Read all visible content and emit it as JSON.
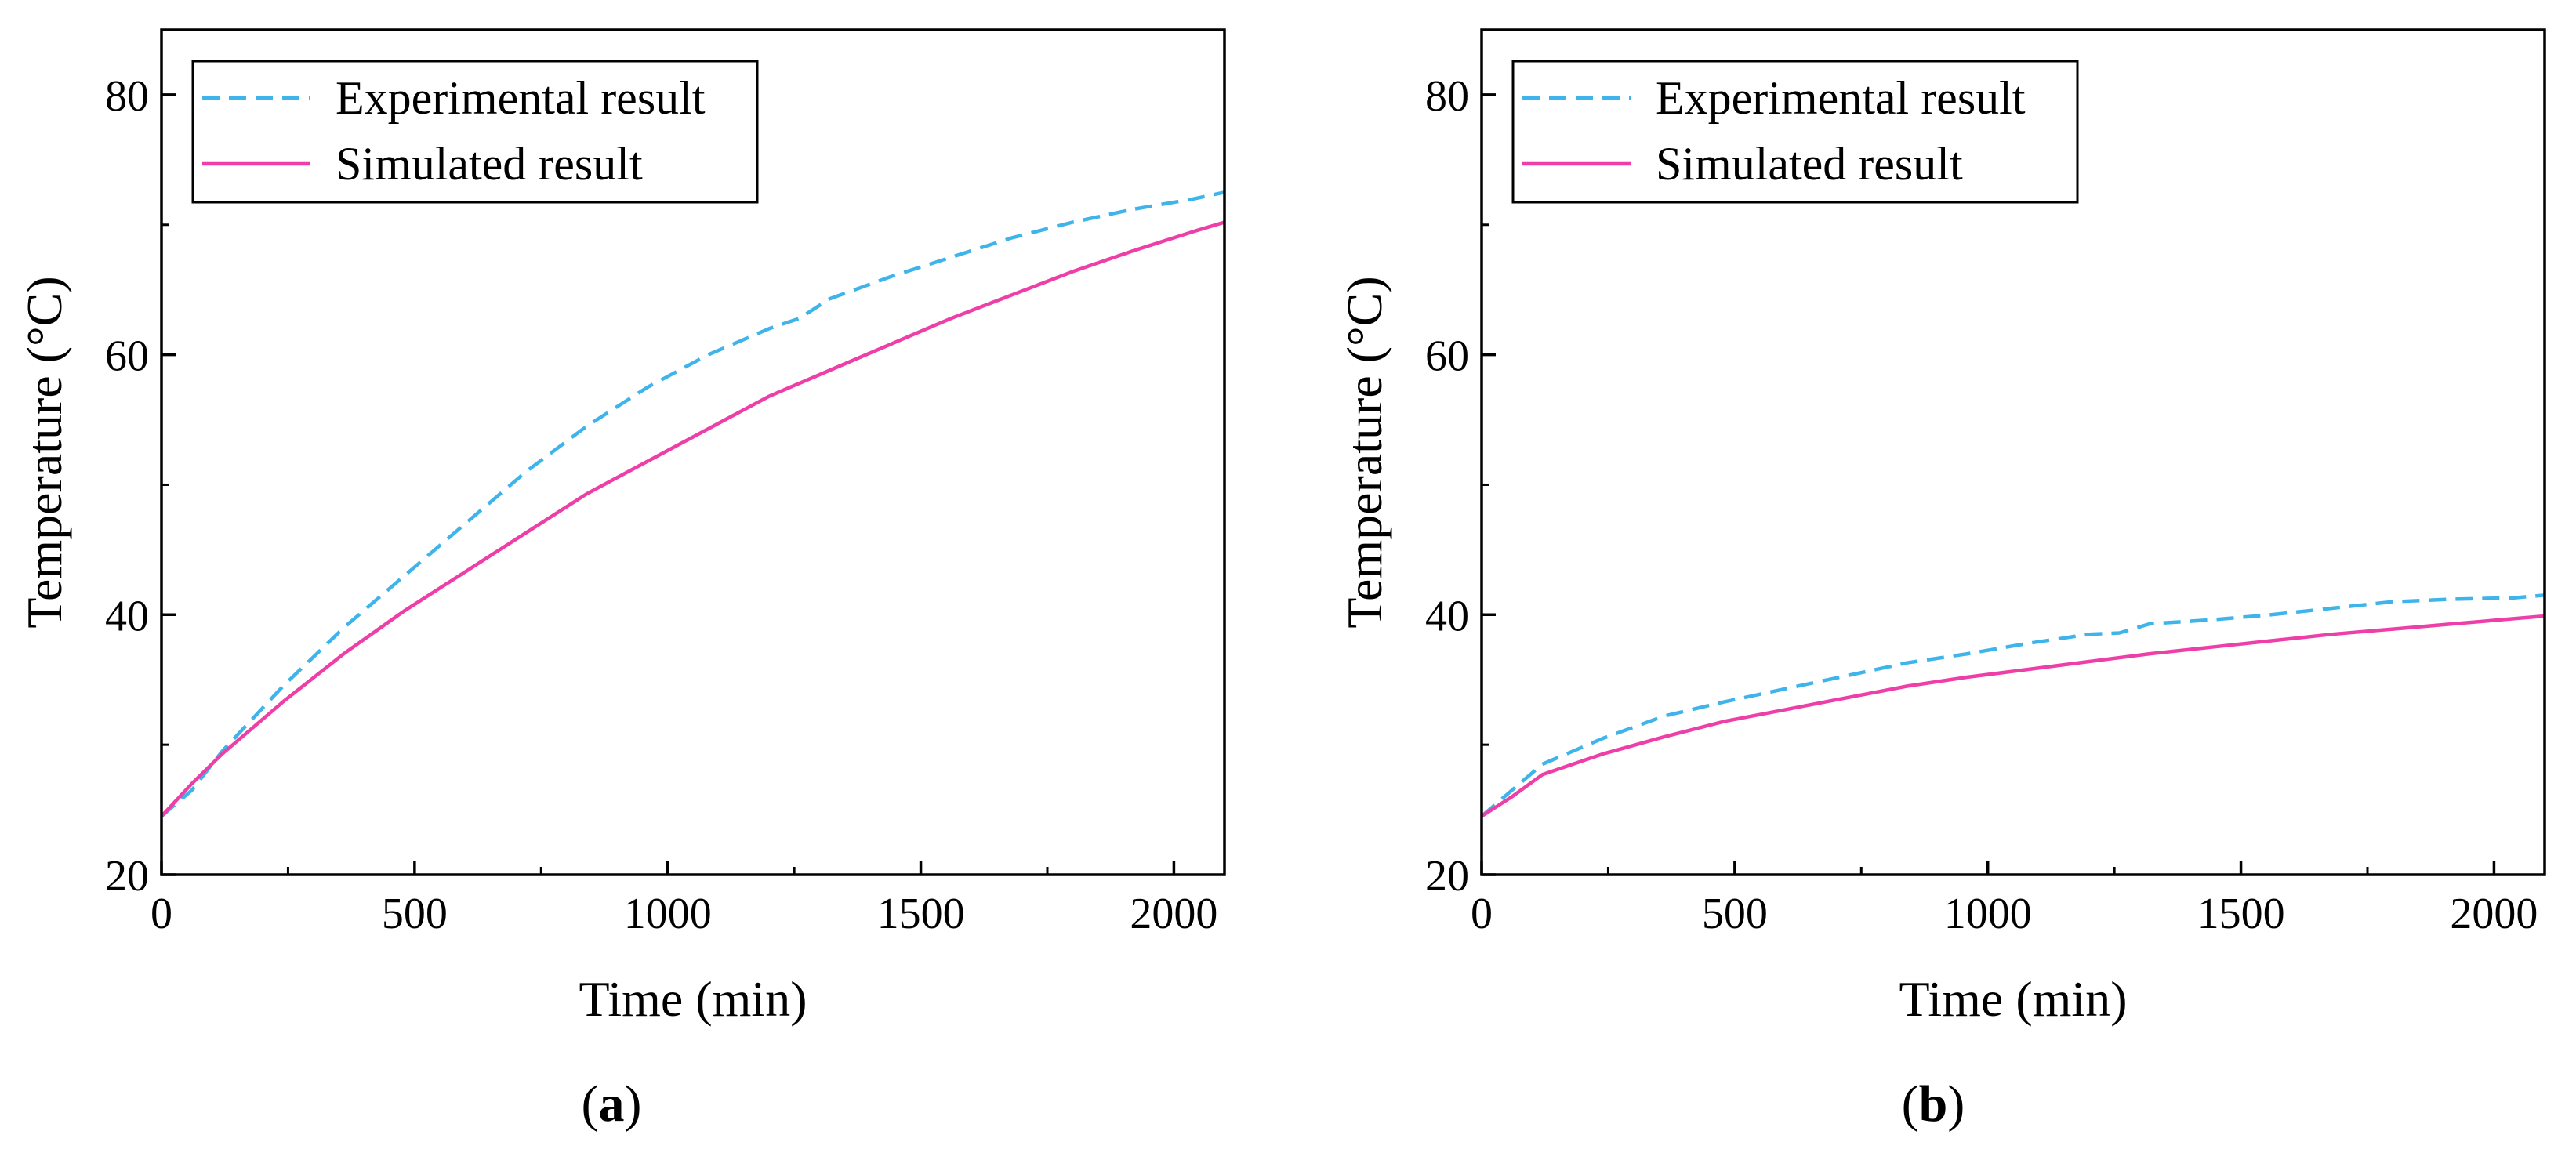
{
  "chart_data": [
    {
      "type": "line",
      "panel_label": "a",
      "xlabel": "Time (min)",
      "ylabel": "Temperature (°C)",
      "xlim": [
        0,
        2100
      ],
      "ylim": [
        20,
        85
      ],
      "xticks": [
        0,
        500,
        1000,
        1500,
        2000
      ],
      "yticks": [
        20,
        40,
        60,
        80
      ],
      "legend_position": "top-left",
      "series": [
        {
          "name": "Experimental result",
          "style": "dashed",
          "color": "#3fb4ea",
          "x": [
            0,
            60,
            120,
            240,
            360,
            480,
            600,
            720,
            840,
            960,
            1080,
            1200,
            1260,
            1320,
            1440,
            1560,
            1680,
            1800,
            1920,
            2040,
            2100
          ],
          "y": [
            24.5,
            26.5,
            29.5,
            34.5,
            39.0,
            43.0,
            47.0,
            51.0,
            54.5,
            57.5,
            60.0,
            62.0,
            62.8,
            64.3,
            66.0,
            67.5,
            69.0,
            70.2,
            71.2,
            72.0,
            72.5
          ]
        },
        {
          "name": "Simulated result",
          "style": "solid",
          "color": "#ee3fa8",
          "x": [
            0,
            60,
            120,
            240,
            360,
            480,
            600,
            720,
            840,
            960,
            1080,
            1200,
            1320,
            1440,
            1560,
            1680,
            1800,
            1920,
            2040,
            2100
          ],
          "y": [
            24.5,
            27.0,
            29.3,
            33.3,
            37.0,
            40.3,
            43.3,
            46.3,
            49.3,
            51.8,
            54.3,
            56.8,
            58.8,
            60.8,
            62.8,
            64.6,
            66.4,
            68.0,
            69.5,
            70.2
          ]
        }
      ]
    },
    {
      "type": "line",
      "panel_label": "b",
      "xlabel": "Time (min)",
      "ylabel": "Temperature (°C)",
      "xlim": [
        0,
        2100
      ],
      "ylim": [
        20,
        85
      ],
      "xticks": [
        0,
        500,
        1000,
        1500,
        2000
      ],
      "yticks": [
        20,
        40,
        60,
        80
      ],
      "legend_position": "top-left",
      "series": [
        {
          "name": "Experimental result",
          "style": "dashed",
          "color": "#3fb4ea",
          "x": [
            0,
            60,
            120,
            240,
            360,
            480,
            600,
            720,
            840,
            960,
            1080,
            1200,
            1260,
            1320,
            1440,
            1560,
            1680,
            1800,
            1920,
            2040,
            2100
          ],
          "y": [
            24.5,
            26.5,
            28.5,
            30.5,
            32.2,
            33.3,
            34.3,
            35.3,
            36.3,
            37.0,
            37.8,
            38.5,
            38.6,
            39.3,
            39.6,
            40.0,
            40.5,
            41.0,
            41.2,
            41.3,
            41.5
          ]
        },
        {
          "name": "Simulated result",
          "style": "solid",
          "color": "#ee3fa8",
          "x": [
            0,
            60,
            120,
            240,
            360,
            480,
            600,
            720,
            840,
            960,
            1080,
            1200,
            1320,
            1440,
            1560,
            1680,
            1800,
            1920,
            2040,
            2100
          ],
          "y": [
            24.5,
            26.0,
            27.7,
            29.3,
            30.6,
            31.8,
            32.7,
            33.6,
            34.5,
            35.2,
            35.8,
            36.4,
            37.0,
            37.5,
            38.0,
            38.5,
            38.9,
            39.3,
            39.7,
            39.9
          ]
        }
      ]
    }
  ]
}
